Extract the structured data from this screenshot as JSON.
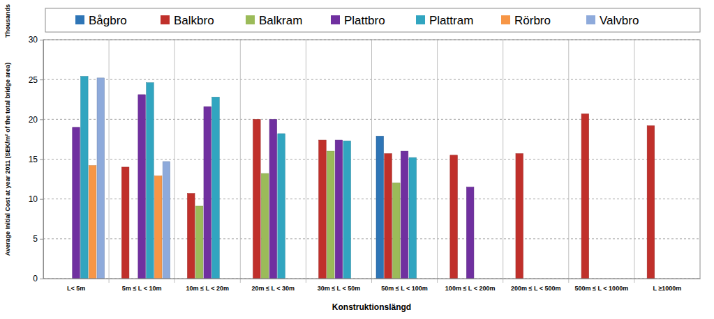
{
  "chart_data": {
    "type": "bar",
    "x_label": "Konstruktionslängd",
    "y_label": "Average Initial Cost at year 2011 (SEK/m² of the total bridge area)",
    "annotations": [
      "Thousands"
    ],
    "categories": [
      "L< 5m",
      "5m ≤ L < 10m",
      "10m ≤ L < 20m",
      "20m ≤ L < 30m",
      "30m ≤ L < 50m",
      "50m ≤ L < 100m",
      "100m ≤ L < 200m",
      "200m ≤ L < 500m",
      "500m ≤ L < 1000m",
      "L ≥1000m"
    ],
    "series": [
      {
        "name": "Bågbro",
        "color": "#2e75b6",
        "values": [
          null,
          null,
          null,
          null,
          null,
          17.9,
          null,
          null,
          null,
          null
        ]
      },
      {
        "name": "Balkbro",
        "color": "#c0302b",
        "values": [
          null,
          14.0,
          10.7,
          20.0,
          17.4,
          15.7,
          15.5,
          15.7,
          20.7,
          19.2
        ]
      },
      {
        "name": "Balkram",
        "color": "#9bbb59",
        "values": [
          null,
          null,
          9.1,
          13.2,
          16.0,
          12.0,
          null,
          null,
          null,
          null
        ]
      },
      {
        "name": "Plattbro",
        "color": "#7030a0",
        "values": [
          19.0,
          23.1,
          21.6,
          20.0,
          17.4,
          16.0,
          11.5,
          null,
          null,
          null
        ]
      },
      {
        "name": "Plattram",
        "color": "#31a5c0",
        "values": [
          25.4,
          24.6,
          22.8,
          18.2,
          17.3,
          15.2,
          null,
          null,
          null,
          null
        ]
      },
      {
        "name": "Rörbro",
        "color": "#f79646",
        "values": [
          14.2,
          12.9,
          null,
          null,
          null,
          null,
          null,
          null,
          null,
          null
        ]
      },
      {
        "name": "Valvbro",
        "color": "#8eaadb",
        "values": [
          25.2,
          14.7,
          null,
          null,
          null,
          null,
          null,
          null,
          null,
          null
        ]
      }
    ],
    "ylim": [
      0,
      30
    ],
    "yticks": [
      0,
      5,
      10,
      15,
      20,
      25,
      30
    ],
    "grid": true,
    "legend": "top"
  }
}
